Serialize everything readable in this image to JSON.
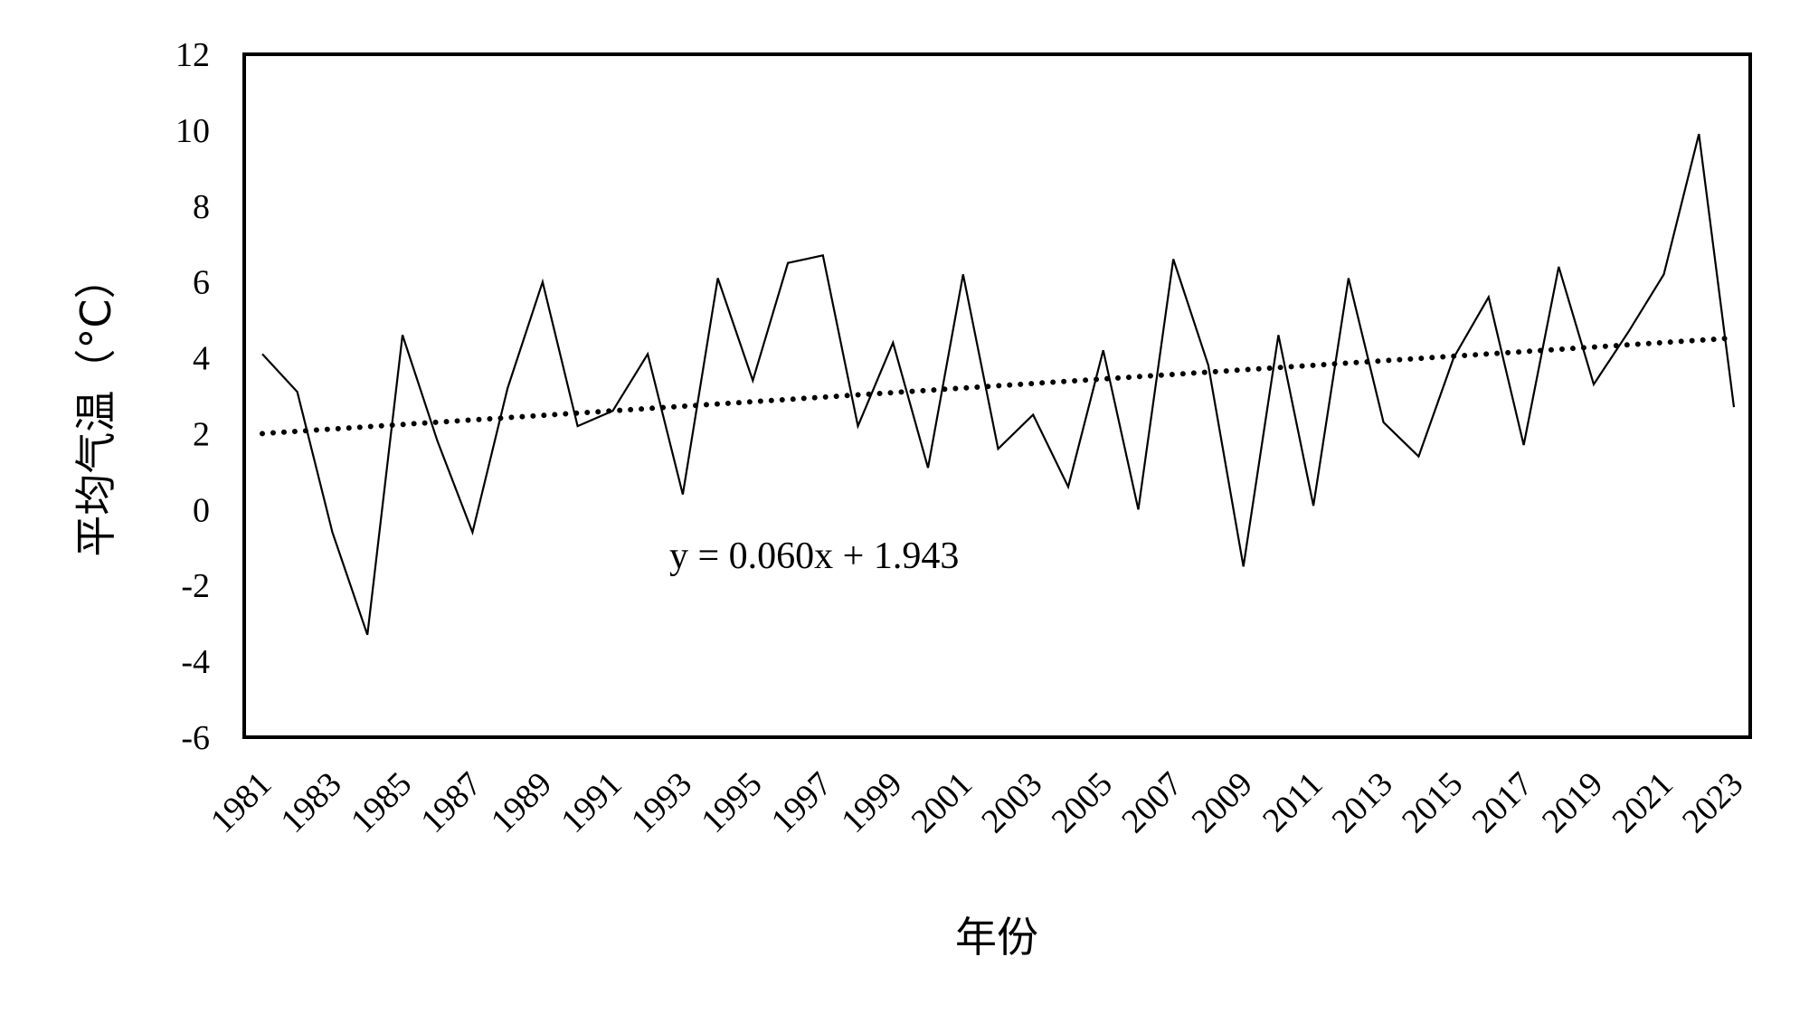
{
  "chart_data": {
    "type": "line",
    "title": "",
    "xlabel": "年份",
    "ylabel": "平均气温（°C）",
    "ylim": [
      -6,
      12
    ],
    "yticks": [
      "-6",
      "-4",
      "-2",
      "0",
      "2",
      "4",
      "6",
      "8",
      "10",
      "12"
    ],
    "x": [
      1981,
      1982,
      1983,
      1984,
      1985,
      1986,
      1987,
      1988,
      1989,
      1990,
      1991,
      1992,
      1993,
      1994,
      1995,
      1996,
      1997,
      1998,
      1999,
      2000,
      2001,
      2002,
      2003,
      2004,
      2005,
      2006,
      2007,
      2008,
      2009,
      2010,
      2011,
      2012,
      2013,
      2014,
      2015,
      2016,
      2017,
      2018,
      2019,
      2020,
      2021,
      2022,
      2023
    ],
    "xtick_labels": [
      "1981",
      "1983",
      "1985",
      "1987",
      "1989",
      "1991",
      "1993",
      "1995",
      "1997",
      "1999",
      "2001",
      "2003",
      "2005",
      "2007",
      "2009",
      "2011",
      "2013",
      "2015",
      "2017",
      "2019",
      "2021",
      "2023"
    ],
    "series": [
      {
        "style": "solid",
        "values": [
          4.1,
          3.1,
          -0.6,
          -3.3,
          4.6,
          1.8,
          -0.6,
          3.2,
          6.0,
          2.2,
          2.6,
          4.1,
          0.4,
          6.1,
          3.4,
          6.5,
          6.7,
          2.2,
          4.4,
          1.1,
          6.2,
          1.6,
          2.5,
          0.6,
          4.2,
          0.0,
          6.6,
          3.8,
          -1.5,
          4.6,
          0.1,
          6.1,
          2.3,
          1.4,
          4.0,
          5.6,
          1.7,
          6.4,
          3.3,
          4.7,
          6.2,
          9.9,
          2.7
        ]
      }
    ],
    "trendline": {
      "style": "dotted",
      "slope": 0.06,
      "intercept": 1.943,
      "equation": "y = 0.060x + 1.943"
    },
    "grid": false,
    "legend": "none"
  }
}
